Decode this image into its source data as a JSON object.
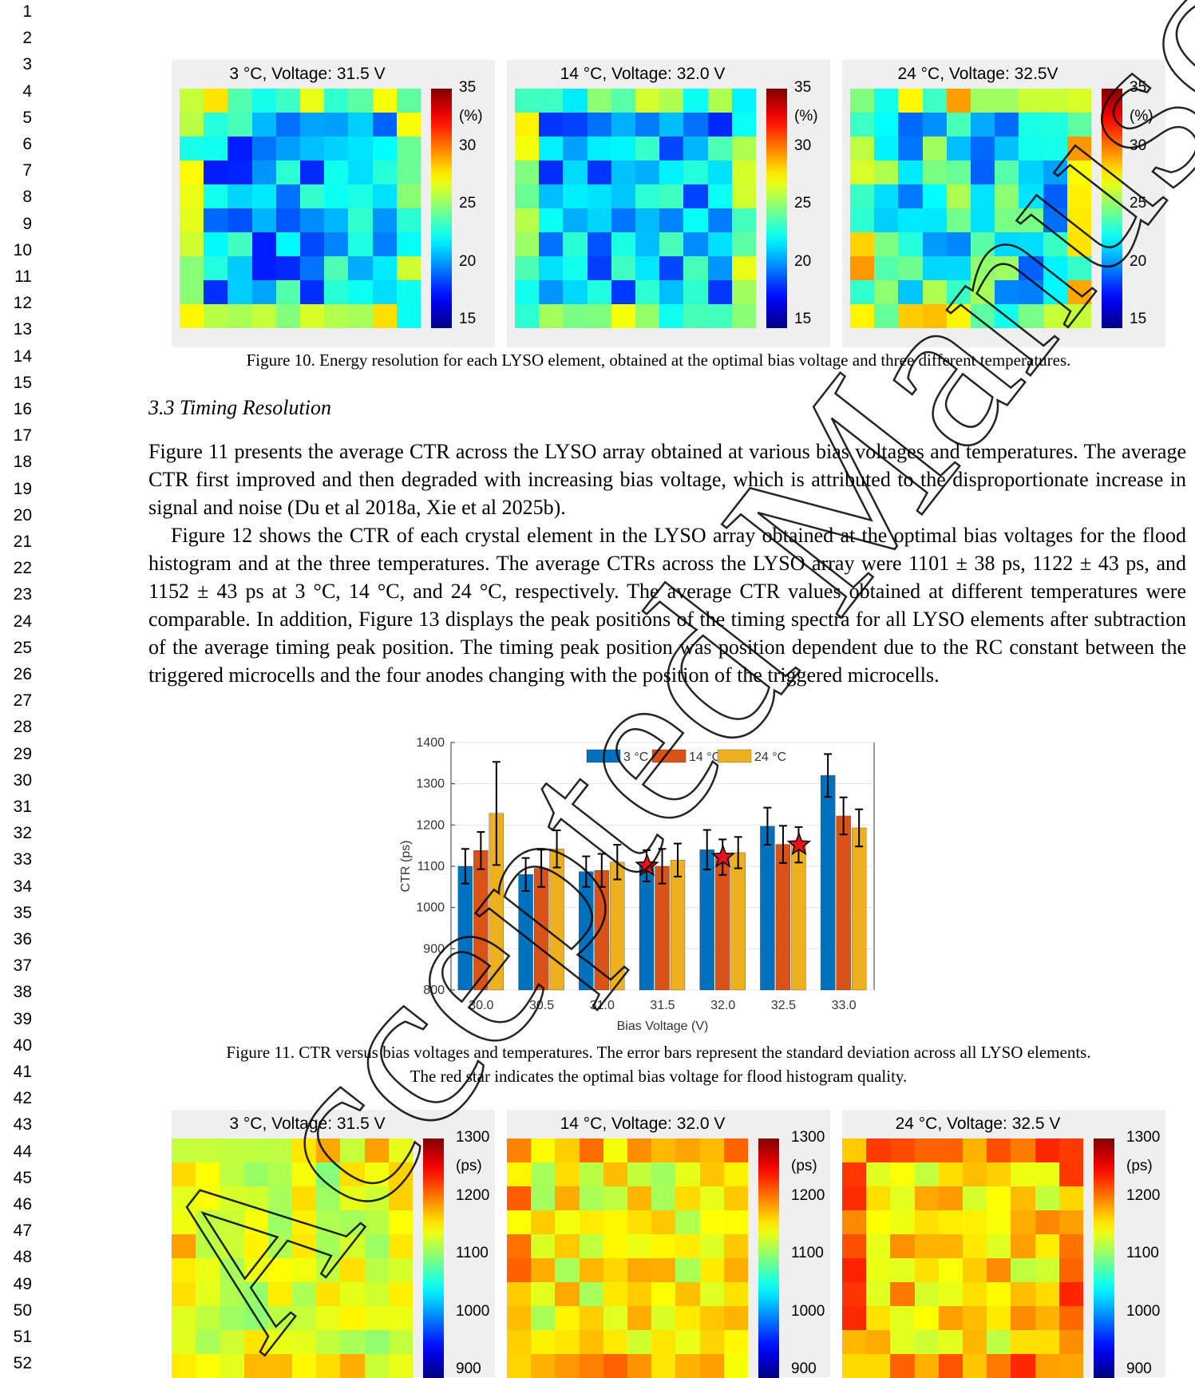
{
  "line_numbers": [
    "1",
    "2",
    "3",
    "4",
    "5",
    "6",
    "7",
    "8",
    "9",
    "10",
    "11",
    "12",
    "13",
    "14",
    "15",
    "16",
    "17",
    "18",
    "19",
    "20",
    "21",
    "22",
    "23",
    "24",
    "25",
    "26",
    "27",
    "28",
    "29",
    "30",
    "31",
    "32",
    "33",
    "34",
    "35",
    "36",
    "37",
    "38",
    "39",
    "40",
    "41",
    "42",
    "43",
    "44",
    "45",
    "46",
    "47",
    "48",
    "49",
    "50",
    "51",
    "52"
  ],
  "fig10": {
    "panels": [
      {
        "title": "3 °C, Voltage: 31.5 V"
      },
      {
        "title": "14 °C, Voltage: 32.0 V"
      },
      {
        "title": "24 °C, Voltage: 32.5V"
      }
    ],
    "colorbar": {
      "ticks": [
        "35",
        "30",
        "25",
        "20",
        "15"
      ],
      "unit": "(%)",
      "min": 15,
      "max": 35
    },
    "caption": "Figure 10. Energy resolution for each LYSO element, obtained at the optimal bias voltage and three different temperatures."
  },
  "section_heading": "3.3 Timing Resolution",
  "paragraphs": [
    "Figure 11 presents the average CTR across the LYSO array obtained at various bias voltages and temperatures. The average CTR first improved and then degraded with increasing bias voltage, which is attributed to the disproportionate increase in signal and noise (Du et al 2018a, Xie et al 2025b).",
    "Figure 12 shows the CTR of each crystal element in the LYSO array obtained at the optimal bias voltages for the flood histogram and at the three temperatures. The average CTRs across the LYSO array were 1101 ± 38 ps, 1122 ± 43 ps, and 1152 ± 43 ps at 3 °C, 14 °C, and 24 °C, respectively. The average CTR values obtained at different temperatures were comparable. In addition, Figure 13 displays the peak positions of the timing spectra for all LYSO elements after subtraction of the average timing peak position. The timing peak position was position dependent due to the RC constant between the triggered microcells and the four anodes changing with the position of the triggered microcells."
  ],
  "chart_data": {
    "type": "bar",
    "categories": [
      "30.0",
      "30.5",
      "31.0",
      "31.5",
      "32.0",
      "32.5",
      "33.0"
    ],
    "xlabel": "Bias Voltage (V)",
    "ylabel": "CTR (ps)",
    "ylim": [
      800,
      1400
    ],
    "yticks": [
      "800",
      "900",
      "1000",
      "1100",
      "1200",
      "1300",
      "1400"
    ],
    "legend_position": "top",
    "series": [
      {
        "name": "3 °C",
        "color": "#0072BD",
        "values": [
          1100,
          1080,
          1087,
          1101,
          1140,
          1197,
          1320
        ],
        "errors": [
          42,
          40,
          37,
          38,
          48,
          45,
          52
        ]
      },
      {
        "name": "14 °C",
        "color": "#D95319",
        "values": [
          1138,
          1095,
          1090,
          1100,
          1122,
          1153,
          1222
        ],
        "errors": [
          45,
          45,
          40,
          42,
          43,
          45,
          45
        ]
      },
      {
        "name": "24 °C",
        "color": "#EDB120",
        "values": [
          1228,
          1142,
          1110,
          1115,
          1133,
          1152,
          1193
        ],
        "errors": [
          125,
          45,
          42,
          40,
          38,
          43,
          45
        ]
      }
    ],
    "stars": [
      {
        "category": "31.5",
        "series": "3 °C",
        "value": 1101
      },
      {
        "category": "32.0",
        "series": "14 °C",
        "value": 1122
      },
      {
        "category": "32.5",
        "series": "24 °C",
        "value": 1152
      }
    ]
  },
  "fig11_caption": [
    "Figure 11. CTR versus bias voltages and temperatures. The error bars represent the standard deviation across all LYSO elements.",
    "The red star indicates the optimal bias voltage for flood histogram quality."
  ],
  "fig12": {
    "panels": [
      {
        "title": "3 °C, Voltage: 31.5 V"
      },
      {
        "title": "14 °C, Voltage: 32.0 V"
      },
      {
        "title": "24 °C, Voltage: 32.5 V"
      }
    ],
    "colorbar": {
      "ticks": [
        "1300",
        "1200",
        "1100",
        "1000",
        "900"
      ],
      "unit": "(ps)",
      "min": 880,
      "max": 1300
    }
  },
  "watermark": "Accepted Manuscript",
  "colors": {
    "panel_bg": "#efefef",
    "watermark": "#000000"
  }
}
